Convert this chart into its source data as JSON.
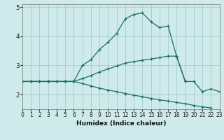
{
  "xlabel": "Humidex (Indice chaleur)",
  "background_color": "#ceeaea",
  "grid_color": "#aacfcf",
  "line_color": "#1a6e64",
  "x": [
    0,
    1,
    2,
    3,
    4,
    5,
    6,
    7,
    8,
    9,
    10,
    11,
    12,
    13,
    14,
    15,
    16,
    17,
    18,
    19,
    20,
    21,
    22,
    23
  ],
  "line1": [
    2.45,
    2.45,
    2.45,
    2.45,
    2.45,
    2.45,
    2.45,
    3.0,
    3.2,
    3.55,
    3.8,
    4.1,
    4.6,
    4.75,
    4.8,
    4.5,
    4.3,
    4.35,
    3.3,
    2.45,
    2.45,
    2.1,
    2.2,
    2.1
  ],
  "line2": [
    2.45,
    2.45,
    2.45,
    2.45,
    2.45,
    2.45,
    2.45,
    2.55,
    2.65,
    2.78,
    2.88,
    2.98,
    3.08,
    3.13,
    3.18,
    3.22,
    3.27,
    3.32,
    3.32,
    2.45,
    null,
    null,
    null,
    null
  ],
  "line3": [
    2.45,
    2.45,
    2.45,
    2.45,
    2.45,
    2.45,
    2.45,
    2.38,
    2.3,
    2.22,
    2.16,
    2.1,
    2.04,
    1.98,
    1.93,
    1.87,
    1.82,
    1.78,
    1.73,
    1.69,
    1.63,
    1.58,
    1.55,
    null
  ],
  "xlim": [
    0,
    23
  ],
  "ylim": [
    1.5,
    5.1
  ],
  "yticks": [
    2,
    3,
    4,
    5
  ],
  "xticks": [
    0,
    1,
    2,
    3,
    4,
    5,
    6,
    7,
    8,
    9,
    10,
    11,
    12,
    13,
    14,
    15,
    16,
    17,
    18,
    19,
    20,
    21,
    22,
    23
  ]
}
